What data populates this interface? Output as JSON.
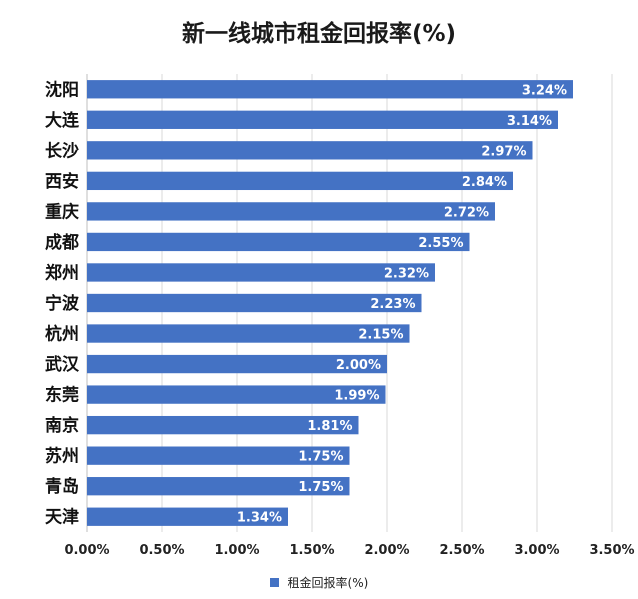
{
  "chart_data": {
    "type": "bar",
    "orientation": "horizontal",
    "title": "新一线城市租金回报率(%)",
    "categories": [
      "沈阳",
      "大连",
      "长沙",
      "西安",
      "重庆",
      "成都",
      "郑州",
      "宁波",
      "杭州",
      "武汉",
      "东莞",
      "南京",
      "苏州",
      "青岛",
      "天津"
    ],
    "series": [
      {
        "name": "租金回报率(%)",
        "values": [
          3.24,
          3.14,
          2.97,
          2.84,
          2.72,
          2.55,
          2.32,
          2.23,
          2.15,
          2.0,
          1.99,
          1.81,
          1.75,
          1.75,
          1.34
        ],
        "data_labels": [
          "3.24%",
          "3.14%",
          "2.97%",
          "2.84%",
          "2.72%",
          "2.55%",
          "2.32%",
          "2.23%",
          "2.15%",
          "2.00%",
          "1.99%",
          "1.81%",
          "1.75%",
          "1.75%",
          "1.34%"
        ]
      }
    ],
    "x_ticks": [
      "0.00%",
      "0.50%",
      "1.00%",
      "1.50%",
      "2.00%",
      "2.50%",
      "3.00%",
      "3.50%"
    ],
    "xlim": [
      0,
      3.5
    ],
    "grid": true,
    "legend_position": "bottom",
    "bar_color": "#4472C4",
    "label_color": "#ffffff"
  }
}
